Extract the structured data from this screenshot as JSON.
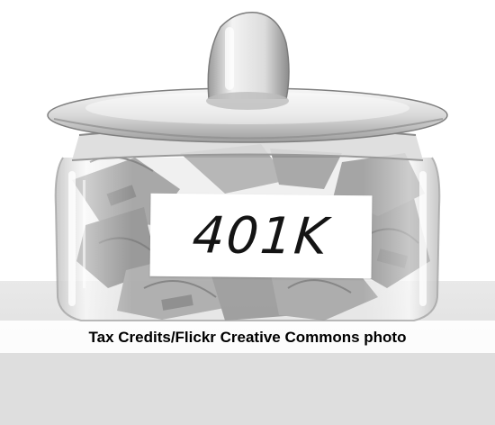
{
  "photo": {
    "subject": "glass-jar-with-cash",
    "label_text": "401K"
  },
  "caption": {
    "text": "Tax Credits/Flickr Creative Commons photo"
  }
}
